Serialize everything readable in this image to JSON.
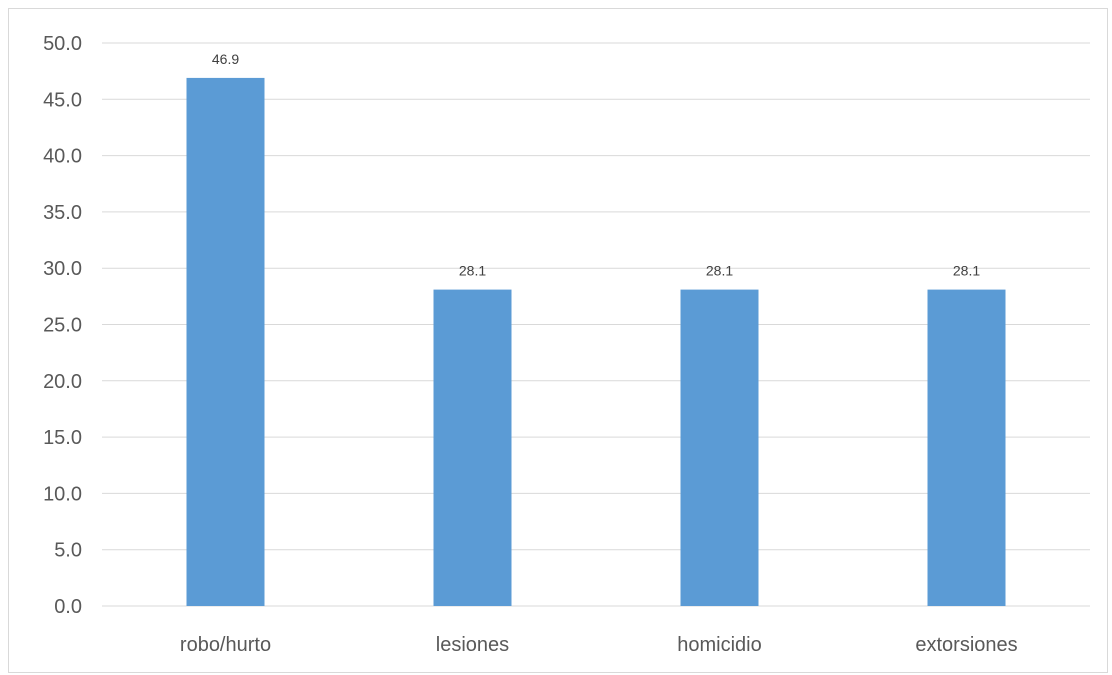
{
  "chart_data": {
    "type": "bar",
    "title": "",
    "xlabel": "",
    "ylabel": "",
    "categories": [
      "robo/hurto",
      "lesiones",
      "homicidio",
      "extorsiones"
    ],
    "values": [
      46.9,
      28.1,
      28.1,
      28.1
    ],
    "data_labels": [
      "46.9",
      "28.1",
      "28.1",
      "28.1"
    ],
    "ylim": [
      0,
      50
    ],
    "y_ticks": [
      0,
      5,
      10,
      15,
      20,
      25,
      30,
      35,
      40,
      45,
      50
    ],
    "y_tick_labels": [
      "0.0",
      "5.0",
      "10.0",
      "15.0",
      "20.0",
      "25.0",
      "30.0",
      "35.0",
      "40.0",
      "45.0",
      "50.0"
    ],
    "grid": true,
    "legend": "none",
    "bar_color": "#5B9BD5",
    "grid_color": "#D9D9D9"
  }
}
